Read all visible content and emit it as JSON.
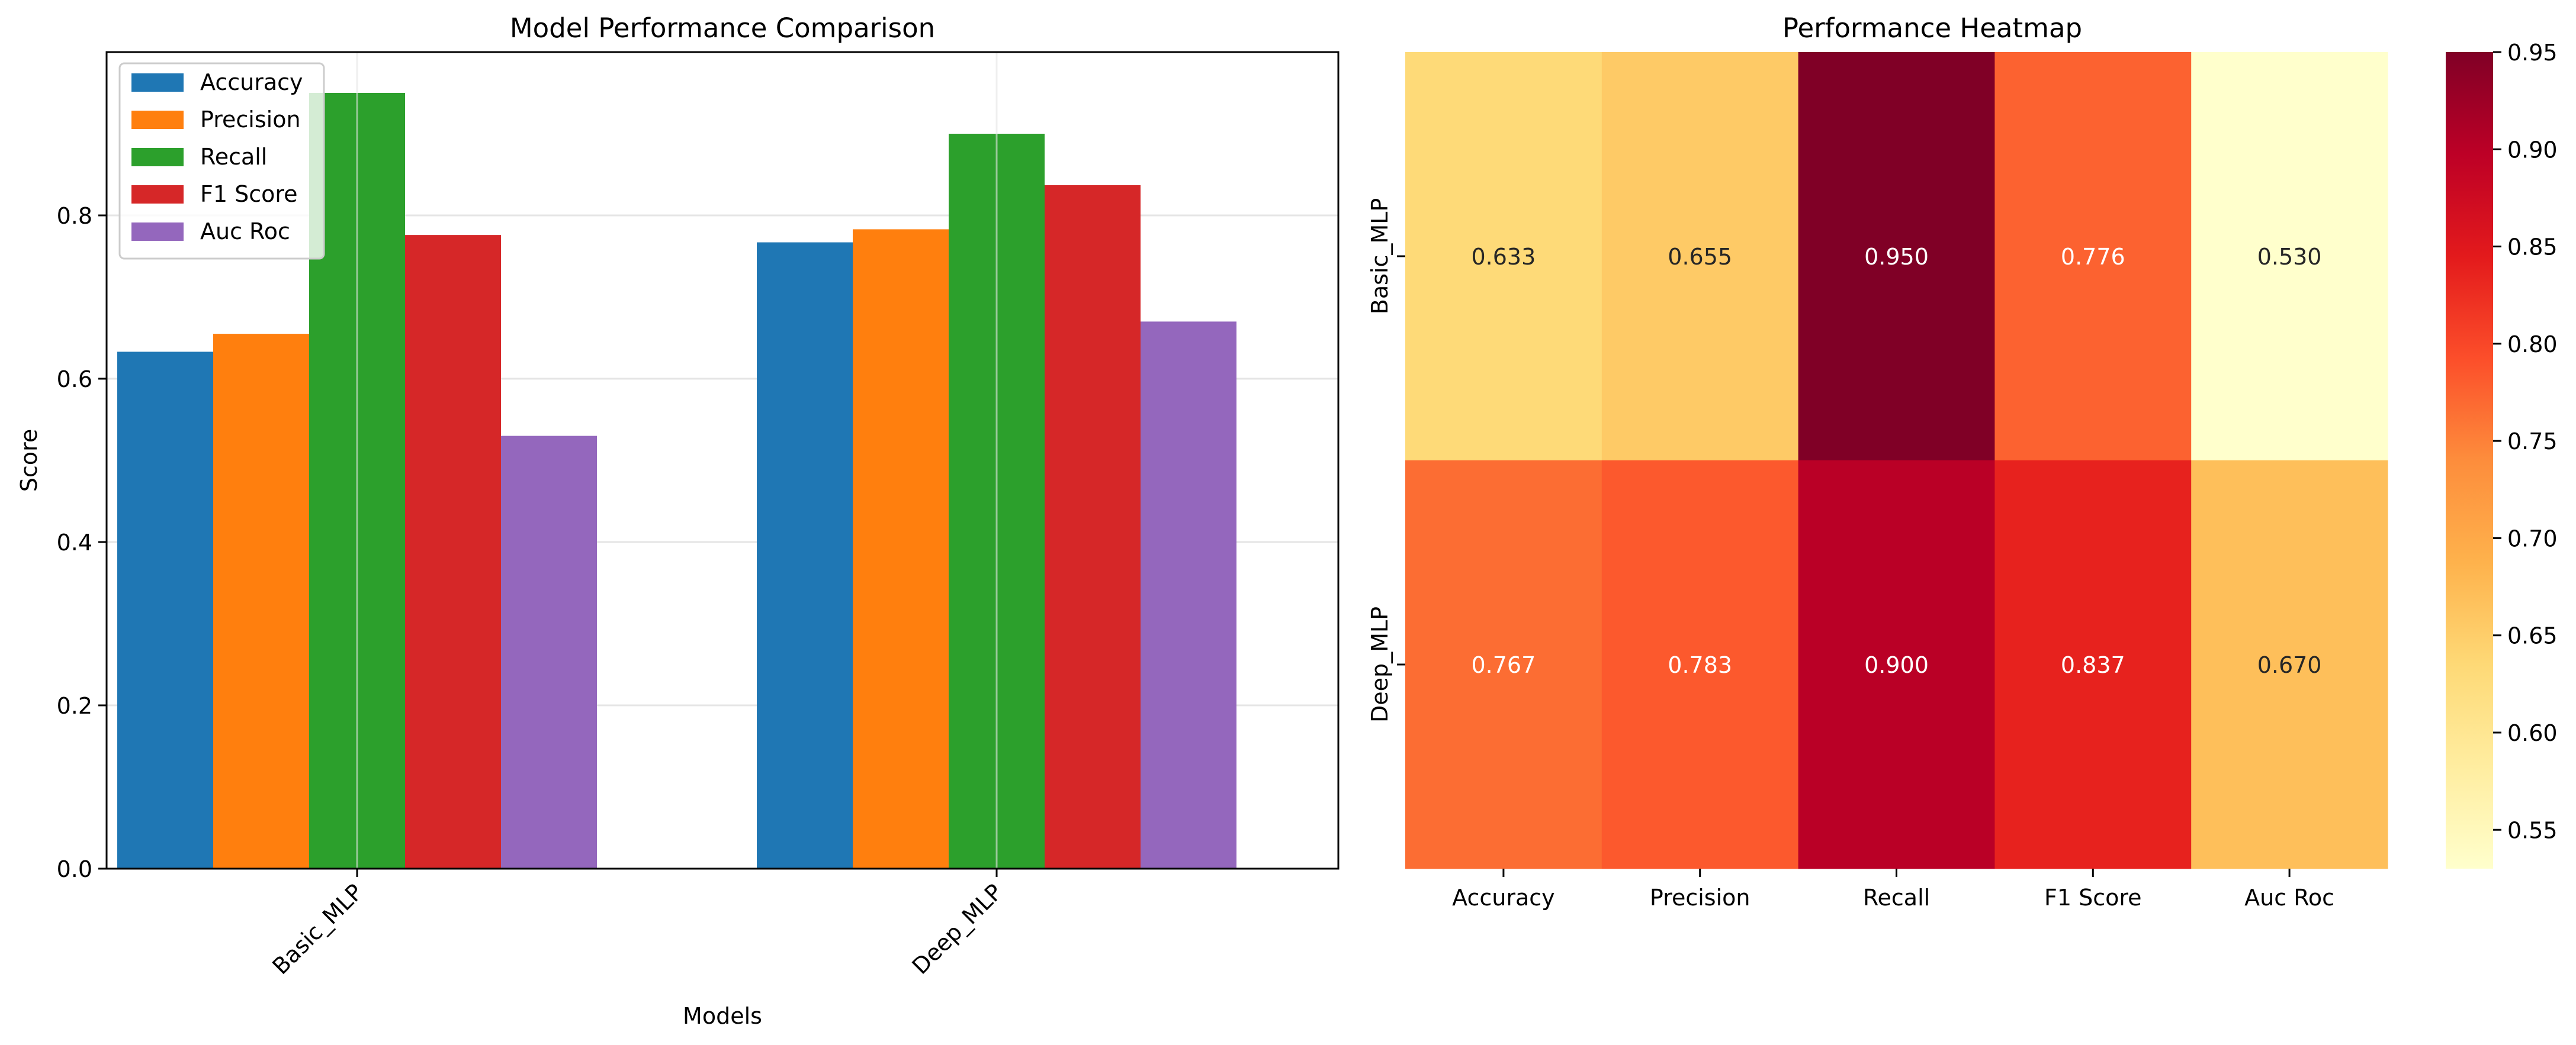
{
  "chart_data": [
    {
      "type": "bar",
      "title": "Model Performance Comparison",
      "xlabel": "Models",
      "ylabel": "Score",
      "categories": [
        "Basic_MLP",
        "Deep_MLP"
      ],
      "ylim": [
        0,
        1.0
      ],
      "yticks": [
        "0.0",
        "0.2",
        "0.4",
        "0.6",
        "0.8"
      ],
      "grid": true,
      "legend_position": "top-left",
      "series": [
        {
          "name": "Accuracy",
          "values": [
            0.633,
            0.767
          ],
          "color": "#1f77b4"
        },
        {
          "name": "Precision",
          "values": [
            0.655,
            0.783
          ],
          "color": "#ff7f0e"
        },
        {
          "name": "Recall",
          "values": [
            0.95,
            0.9
          ],
          "color": "#2ca02c"
        },
        {
          "name": "F1 Score",
          "values": [
            0.776,
            0.837
          ],
          "color": "#d62728"
        },
        {
          "name": "Auc Roc",
          "values": [
            0.53,
            0.67
          ],
          "color": "#9467bd"
        }
      ]
    },
    {
      "type": "heatmap",
      "title": "Performance Heatmap",
      "rows": [
        "Basic_MLP",
        "Deep_MLP"
      ],
      "columns": [
        "Accuracy",
        "Precision",
        "Recall",
        "F1 Score",
        "Auc Roc"
      ],
      "values": [
        [
          0.633,
          0.655,
          0.95,
          0.776,
          0.53
        ],
        [
          0.767,
          0.783,
          0.9,
          0.837,
          0.67
        ]
      ],
      "cell_labels": [
        [
          "0.633",
          "0.655",
          "0.950",
          "0.776",
          "0.530"
        ],
        [
          "0.767",
          "0.783",
          "0.900",
          "0.837",
          "0.670"
        ]
      ],
      "colormap": "YlOrRd",
      "colorbar_range": [
        0.53,
        0.95
      ],
      "colorbar_ticks": [
        "0.55",
        "0.60",
        "0.65",
        "0.70",
        "0.75",
        "0.80",
        "0.85",
        "0.90",
        "0.95"
      ]
    }
  ]
}
